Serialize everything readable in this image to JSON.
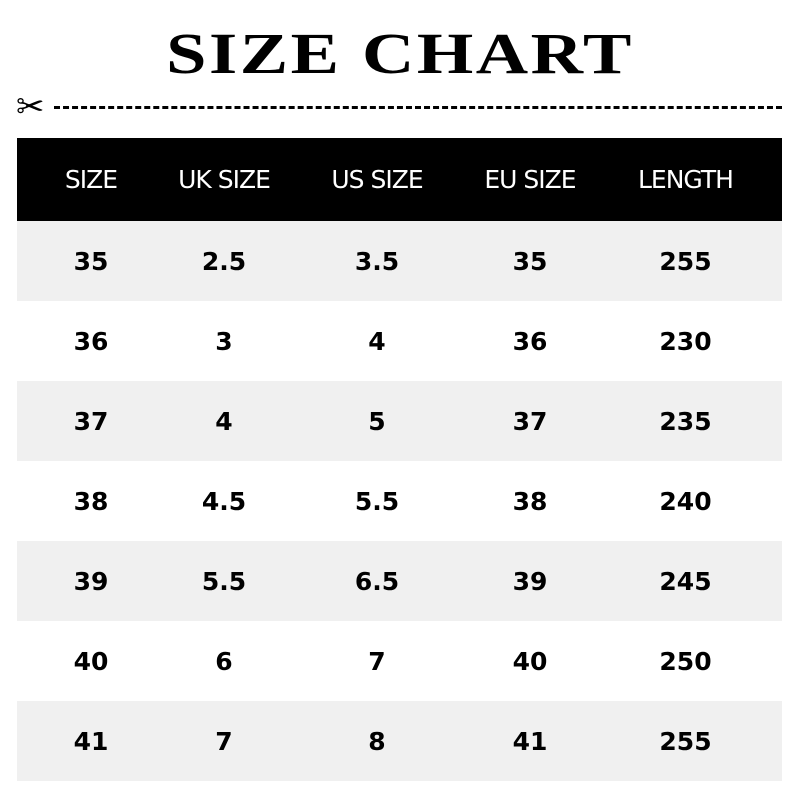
{
  "title": "SIZE CHART",
  "icons": {
    "cut_line": "scissors-icon"
  },
  "table": {
    "headers": [
      "SIZE",
      "UK SIZE",
      "US SIZE",
      "EU SIZE",
      "LENGTH"
    ],
    "rows": [
      [
        "35",
        "2.5",
        "3.5",
        "35",
        "255"
      ],
      [
        "36",
        "3",
        "4",
        "36",
        "230"
      ],
      [
        "37",
        "4",
        "5",
        "37",
        "235"
      ],
      [
        "38",
        "4.5",
        "5.5",
        "38",
        "240"
      ],
      [
        "39",
        "5.5",
        "6.5",
        "39",
        "245"
      ],
      [
        "40",
        "6",
        "7",
        "40",
        "250"
      ],
      [
        "41",
        "7",
        "8",
        "41",
        "255"
      ]
    ]
  },
  "colors": {
    "header_bg": "#000000",
    "header_text": "#ffffff",
    "alt_row_bg": "#f0f0f0"
  }
}
